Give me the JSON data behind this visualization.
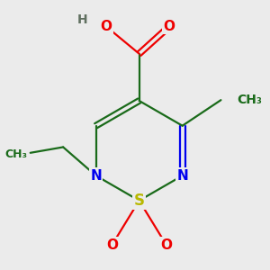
{
  "bg_color": "#ebebeb",
  "atom_colors": {
    "S": "#b8b800",
    "N": "#0000ee",
    "O": "#ee0000",
    "C": "#1a6b1a",
    "H": "#607060"
  },
  "bond_color": "#1a6b1a",
  "figsize": [
    3.0,
    3.0
  ],
  "dpi": 100
}
